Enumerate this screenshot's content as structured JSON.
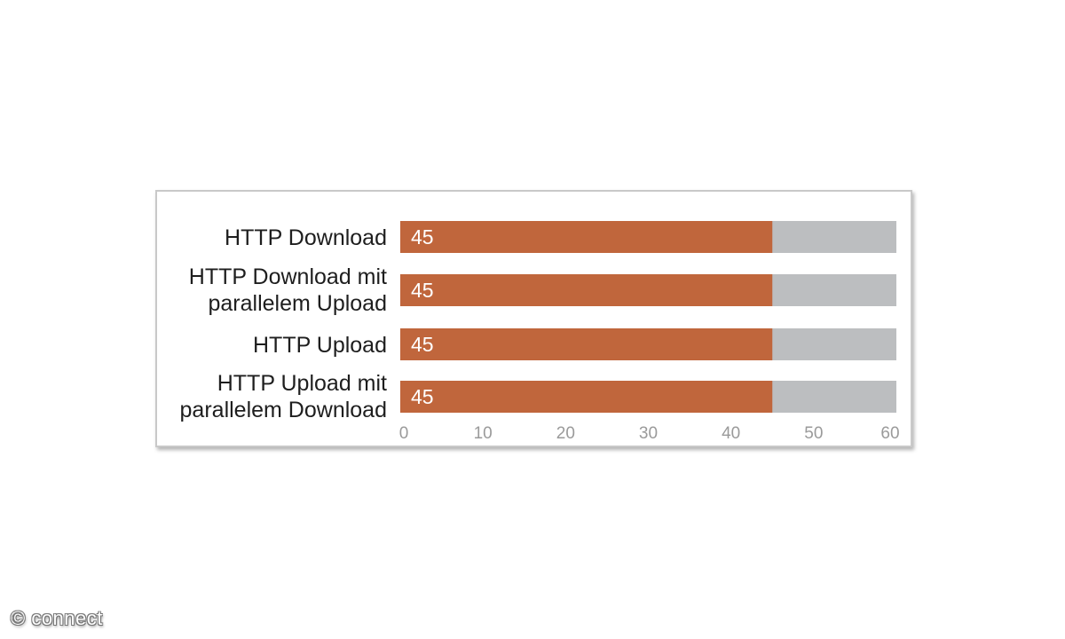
{
  "chart_data": {
    "type": "bar",
    "orientation": "horizontal",
    "categories": [
      [
        "HTTP Download"
      ],
      [
        "HTTP Download mit",
        "parallelem Upload"
      ],
      [
        "HTTP Upload"
      ],
      [
        "HTTP Upload mit",
        "parallelem Download"
      ]
    ],
    "values": [
      45,
      45,
      45,
      45
    ],
    "data_labels": [
      "45",
      "45",
      "45",
      "45"
    ],
    "xlim": [
      0,
      60
    ],
    "xticks": [
      0,
      10,
      20,
      30,
      40,
      50,
      60
    ],
    "grid": false,
    "legend": "none",
    "title": "",
    "xlabel": "",
    "ylabel": "",
    "colors": {
      "bar": "#c0663c",
      "track": "#bcbec0",
      "label": "#1e1e1e",
      "tick": "#9a9a9a"
    }
  },
  "watermark": "© connect"
}
